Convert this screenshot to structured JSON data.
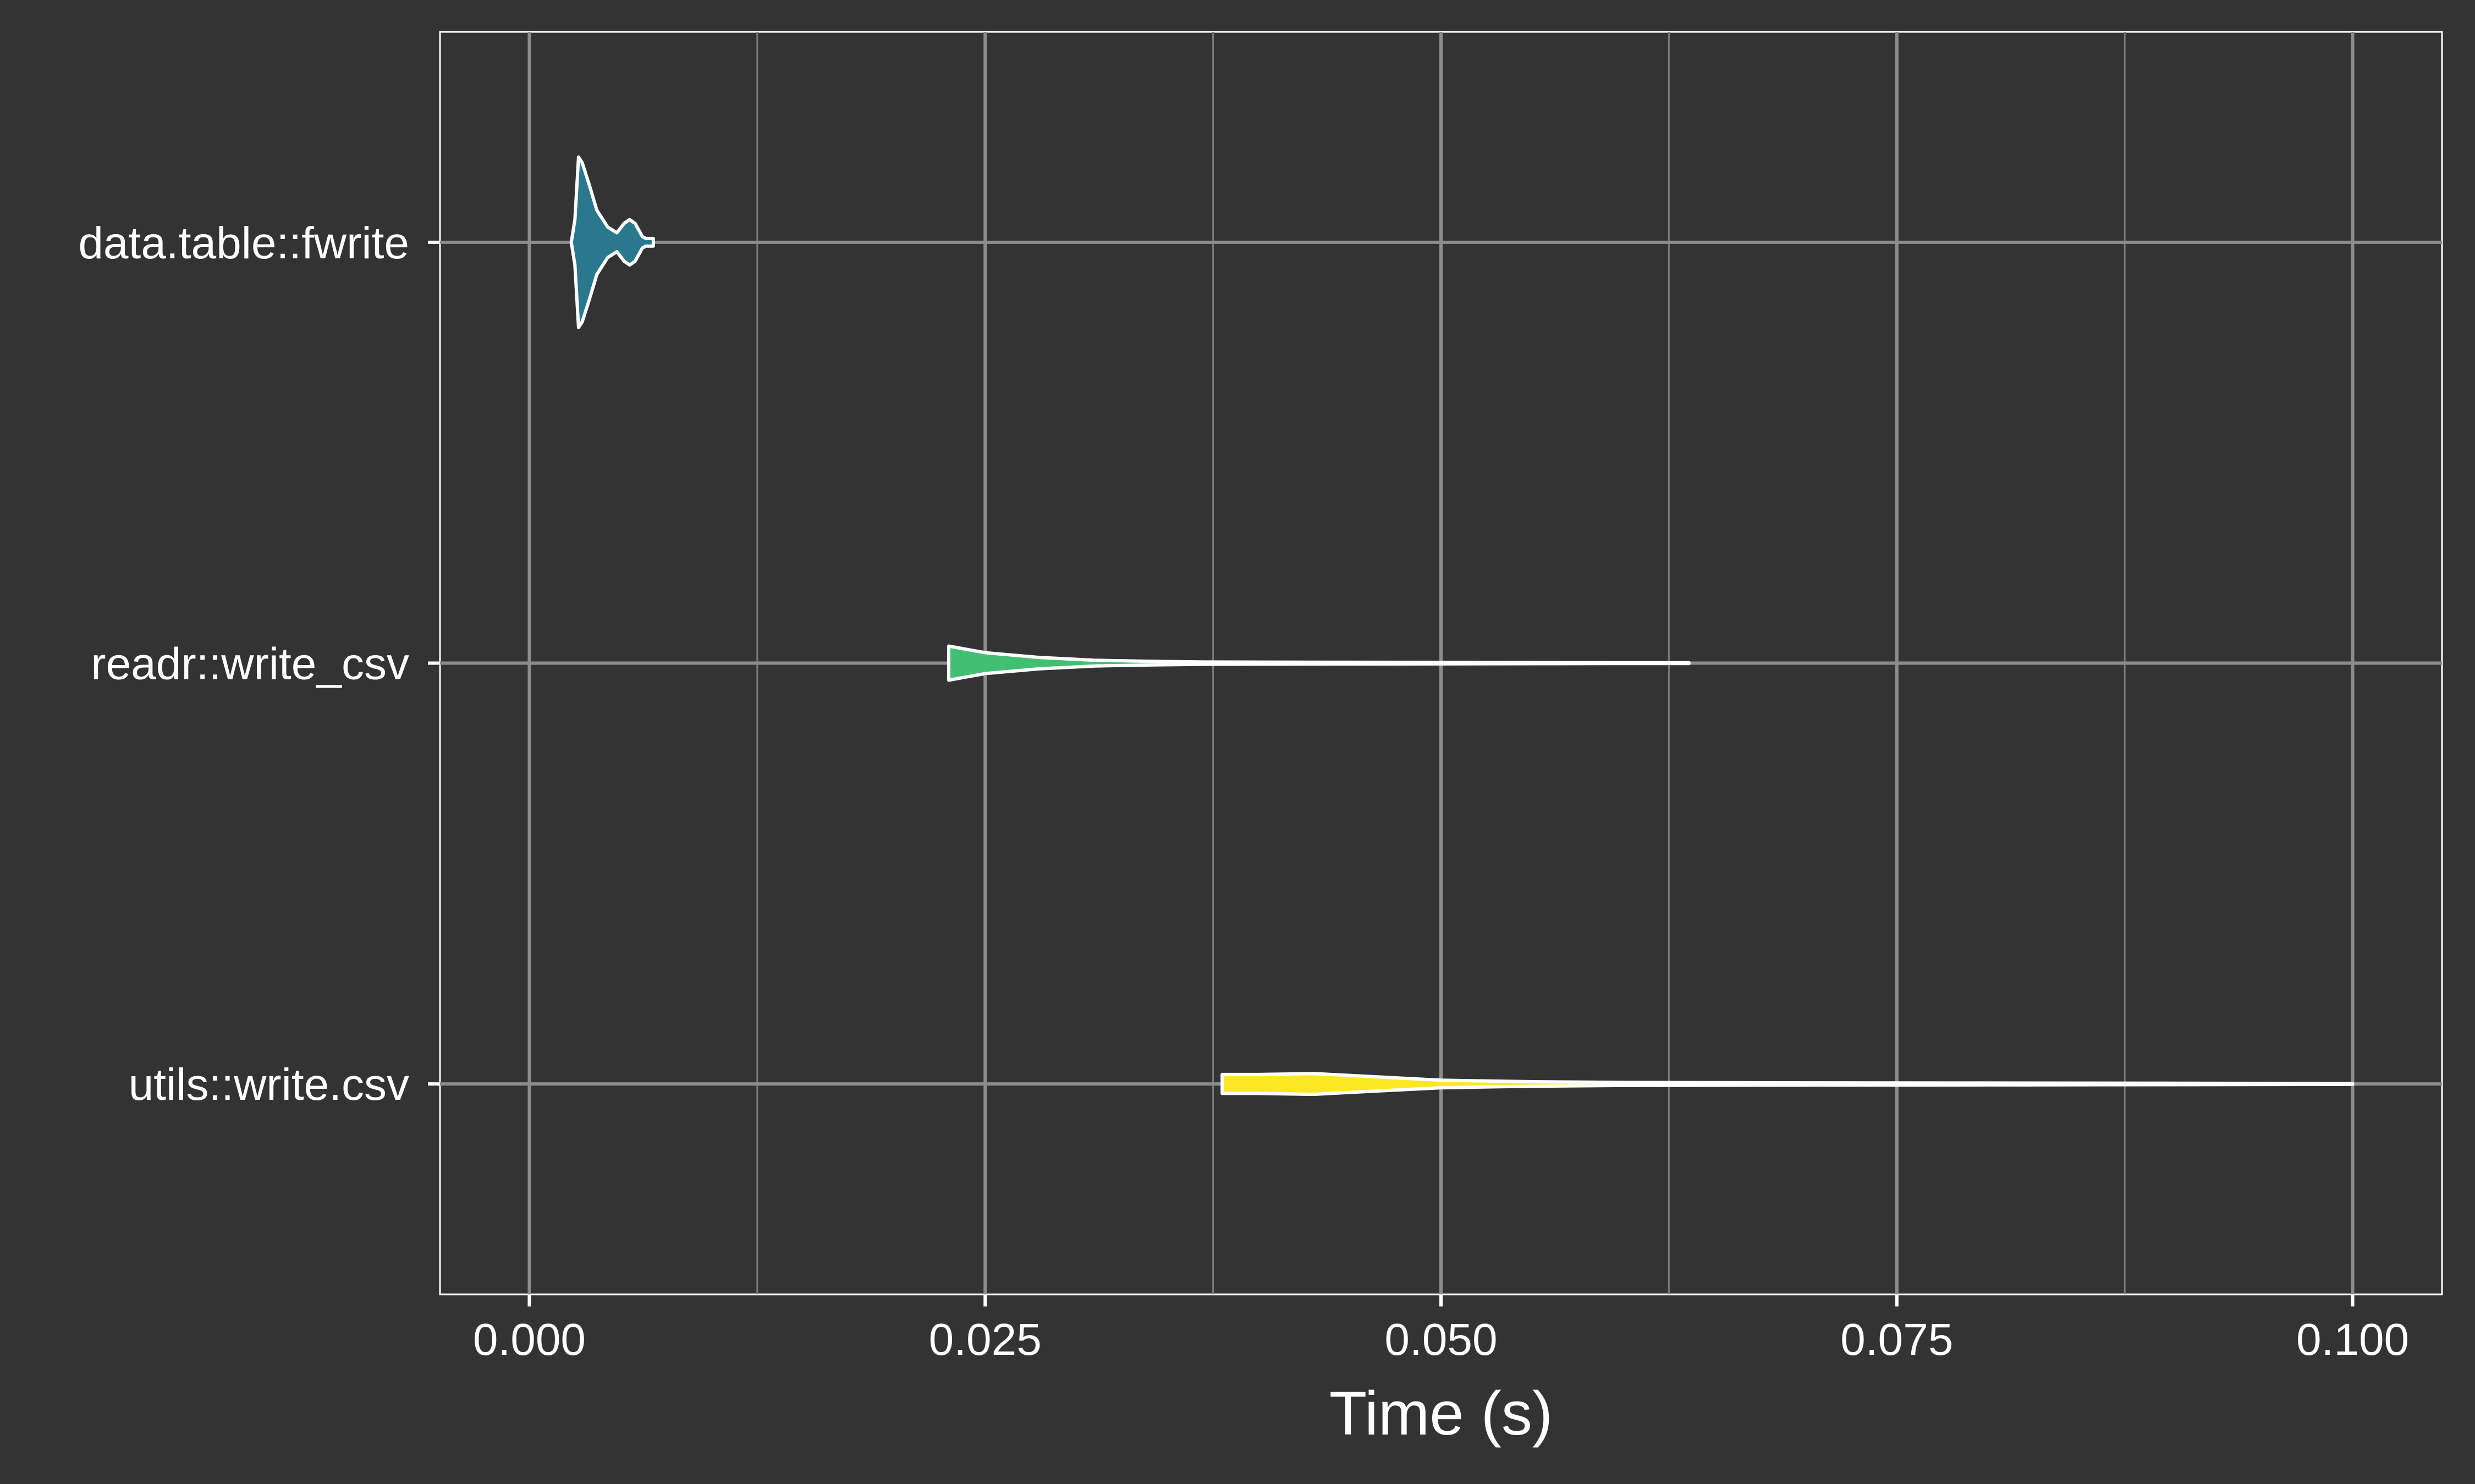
{
  "chart_data": {
    "type": "violin",
    "orientation": "horizontal",
    "title": "",
    "xlabel": "Time (s)",
    "ylabel": "",
    "xlim": [
      -0.0049,
      0.1049
    ],
    "x_ticks": [
      0.0,
      0.025,
      0.05,
      0.075,
      0.1
    ],
    "x_tick_labels": [
      "0.000",
      "0.025",
      "0.050",
      "0.075",
      "0.100"
    ],
    "categories": [
      "data.table::fwrite",
      "readr::write_csv",
      "utils::write.csv"
    ],
    "grid": true,
    "legend": "none",
    "series": [
      {
        "category": "data.table::fwrite",
        "color": "#2A788E",
        "min": 0.0023,
        "max": 0.0068,
        "density": [
          [
            0.0023,
            0.0
          ],
          [
            0.0025,
            0.12
          ],
          [
            0.0027,
            0.45
          ],
          [
            0.0029,
            0.42
          ],
          [
            0.0033,
            0.3
          ],
          [
            0.0037,
            0.17
          ],
          [
            0.0043,
            0.08
          ],
          [
            0.0048,
            0.05
          ],
          [
            0.0052,
            0.1
          ],
          [
            0.0055,
            0.12
          ],
          [
            0.0058,
            0.1
          ],
          [
            0.0062,
            0.03
          ],
          [
            0.0064,
            0.02
          ],
          [
            0.0068,
            0.02
          ]
        ]
      },
      {
        "category": "readr::write_csv",
        "color": "#43BF71",
        "min": 0.023,
        "max": 0.0636,
        "density": [
          [
            0.023,
            0.09
          ],
          [
            0.025,
            0.055
          ],
          [
            0.028,
            0.03
          ],
          [
            0.031,
            0.015
          ],
          [
            0.034,
            0.01
          ],
          [
            0.037,
            0.006
          ],
          [
            0.042,
            0.005
          ],
          [
            0.05,
            0.004
          ],
          [
            0.056,
            0.003
          ],
          [
            0.06,
            0.002
          ],
          [
            0.0636,
            0.002
          ]
        ]
      },
      {
        "category": "utils::write.csv",
        "color": "#FDE725",
        "min": 0.038,
        "max": 0.1,
        "density": [
          [
            0.038,
            0.05
          ],
          [
            0.04,
            0.05
          ],
          [
            0.043,
            0.055
          ],
          [
            0.046,
            0.04
          ],
          [
            0.05,
            0.02
          ],
          [
            0.055,
            0.012
          ],
          [
            0.06,
            0.008
          ],
          [
            0.07,
            0.006
          ],
          [
            0.08,
            0.005
          ],
          [
            0.09,
            0.004
          ],
          [
            0.1,
            0.002
          ]
        ]
      }
    ]
  }
}
